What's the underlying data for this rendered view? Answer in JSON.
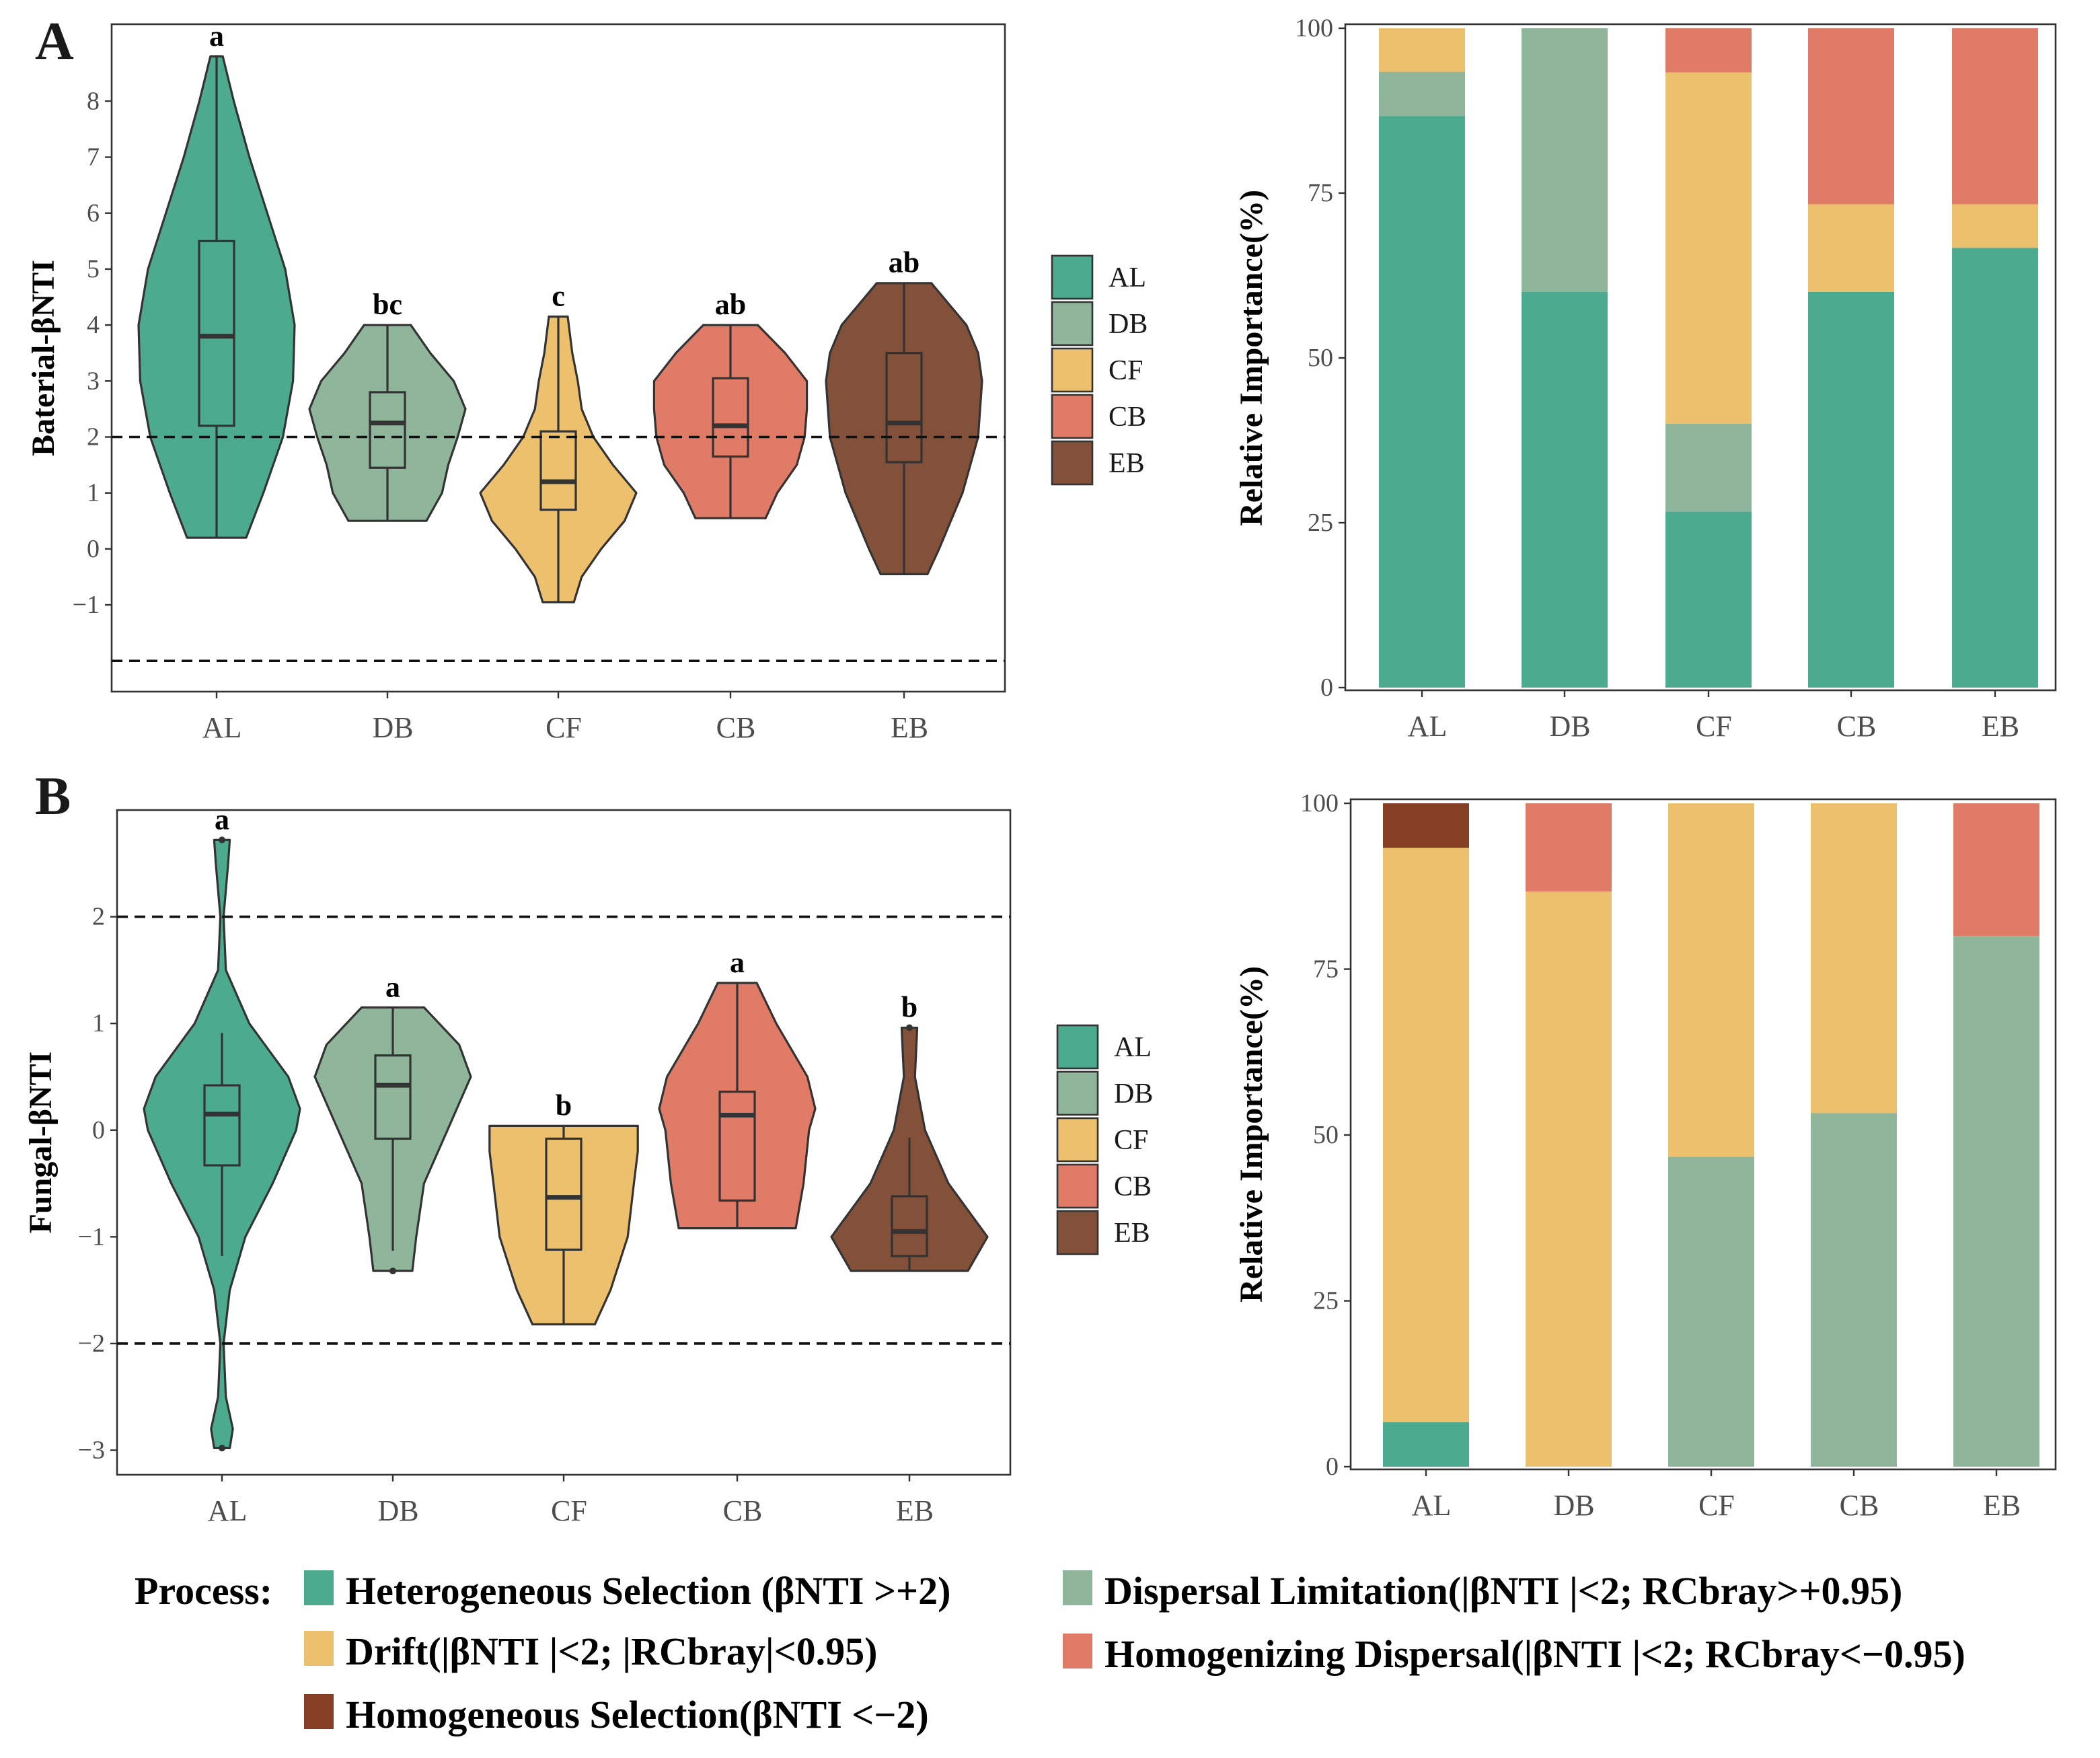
{
  "panel_labels": [
    "A",
    "B"
  ],
  "colors": {
    "groups": {
      "AL": "#4caa8f",
      "DB": "#8fb69a",
      "CF": "#ecc06c",
      "CB": "#e07b67",
      "EB": "#83513a"
    },
    "processes": [
      "#4caa8f",
      "#8fb69a",
      "#ecc06c",
      "#e07b67",
      "#843f25"
    ]
  },
  "process_legend": {
    "title": "Process:",
    "items": [
      "Heterogeneous Selection (βNTI >+2)",
      "Dispersal Limitation(|βNTI |<2; RCbray>+0.95)",
      "Drift(|βNTI |<2; |RCbray|<0.95)",
      "Homogenizing Dispersal(|βNTI |<2; RCbray<−0.95)",
      "Homogeneous Selection(βNTI <−2)"
    ]
  },
  "chart_data": [
    {
      "type": "violin",
      "id": "A-violin",
      "ylabel": "Baterial-βNTI",
      "categories": [
        "AL",
        "DB",
        "CF",
        "CB",
        "EB"
      ],
      "yticks": [
        -1,
        0,
        1,
        2,
        3,
        4,
        5,
        6,
        7,
        8
      ],
      "ylim": [
        -2.55,
        9.375
      ],
      "reference_lines": [
        2,
        -2
      ],
      "legend": [
        "AL",
        "DB",
        "CF",
        "CB",
        "EB"
      ],
      "significance": [
        "a",
        "bc",
        "c",
        "ab",
        "ab"
      ],
      "box": [
        {
          "min": 0.2,
          "q1": 2.2,
          "median": 3.8,
          "q3": 5.5,
          "max": 8.8,
          "outliers": []
        },
        {
          "min": 0.5,
          "q1": 1.45,
          "median": 2.25,
          "q3": 2.8,
          "max": 4.0,
          "outliers": []
        },
        {
          "min": -0.95,
          "q1": 0.7,
          "median": 1.2,
          "q3": 2.1,
          "max": 4.15,
          "outliers": []
        },
        {
          "min": 0.55,
          "q1": 1.65,
          "median": 2.2,
          "q3": 3.05,
          "max": 4.0,
          "outliers": []
        },
        {
          "min": -0.45,
          "q1": 1.55,
          "median": 2.25,
          "q3": 3.5,
          "max": 4.75,
          "outliers": []
        }
      ],
      "density": [
        [
          [
            0.2,
            0.38
          ],
          [
            1,
            0.6
          ],
          [
            2,
            0.85
          ],
          [
            3,
            0.98
          ],
          [
            4,
            1
          ],
          [
            5,
            0.88
          ],
          [
            6,
            0.65
          ],
          [
            7,
            0.42
          ],
          [
            8,
            0.22
          ],
          [
            8.8,
            0.08
          ]
        ],
        [
          [
            0.5,
            0.5
          ],
          [
            1,
            0.7
          ],
          [
            1.5,
            0.78
          ],
          [
            2,
            0.9
          ],
          [
            2.5,
            1
          ],
          [
            3,
            0.85
          ],
          [
            3.5,
            0.55
          ],
          [
            4,
            0.3
          ]
        ],
        [
          [
            -0.95,
            0.2
          ],
          [
            -0.5,
            0.3
          ],
          [
            0,
            0.55
          ],
          [
            0.5,
            0.85
          ],
          [
            1,
            1
          ],
          [
            1.5,
            0.7
          ],
          [
            2,
            0.45
          ],
          [
            2.5,
            0.3
          ],
          [
            3,
            0.25
          ],
          [
            3.5,
            0.18
          ],
          [
            4.15,
            0.12
          ]
        ],
        [
          [
            0.55,
            0.45
          ],
          [
            1,
            0.6
          ],
          [
            1.5,
            0.85
          ],
          [
            2,
            0.95
          ],
          [
            2.5,
            0.98
          ],
          [
            3,
            0.98
          ],
          [
            3.5,
            0.7
          ],
          [
            4,
            0.35
          ]
        ],
        [
          [
            -0.45,
            0.3
          ],
          [
            0,
            0.45
          ],
          [
            1,
            0.75
          ],
          [
            2,
            0.95
          ],
          [
            3,
            1
          ],
          [
            3.5,
            0.95
          ],
          [
            4,
            0.8
          ],
          [
            4.75,
            0.35
          ]
        ]
      ]
    },
    {
      "type": "bar",
      "stacked": true,
      "id": "A-bar",
      "ylabel": "Relative Importance(%)",
      "categories": [
        "AL",
        "DB",
        "CF",
        "CB",
        "EB"
      ],
      "yticks": [
        0,
        25,
        50,
        75,
        100
      ],
      "ylim": [
        0,
        100
      ],
      "series": [
        {
          "name": "Heterogeneous Selection",
          "values": [
            86.7,
            60,
            26.7,
            60,
            66.7
          ]
        },
        {
          "name": "Dispersal Limitation",
          "values": [
            6.7,
            40,
            13.3,
            0,
            0
          ]
        },
        {
          "name": "Drift",
          "values": [
            6.6,
            0,
            53.3,
            13.3,
            6.6
          ]
        },
        {
          "name": "Homogenizing Dispersal",
          "values": [
            0,
            0,
            6.7,
            26.7,
            26.7
          ]
        },
        {
          "name": "Homogeneous Selection",
          "values": [
            0,
            0,
            0,
            0,
            0
          ]
        }
      ]
    },
    {
      "type": "violin",
      "id": "B-violin",
      "ylabel": "Fungal-βNTI",
      "categories": [
        "AL",
        "DB",
        "CF",
        "CB",
        "EB"
      ],
      "yticks": [
        -3,
        -2,
        -1,
        0,
        1,
        2
      ],
      "ylim": [
        -3.23,
        3.0
      ],
      "reference_lines": [
        2,
        -2
      ],
      "legend": [
        "AL",
        "DB",
        "CF",
        "CB",
        "EB"
      ],
      "significance": [
        "a",
        "a",
        "b",
        "a",
        "b"
      ],
      "box": [
        {
          "min": -1.18,
          "q1": -0.33,
          "median": 0.15,
          "q3": 0.42,
          "max": 0.91,
          "outliers": [
            2.72,
            -2.98
          ]
        },
        {
          "min": -1.13,
          "q1": -0.08,
          "median": 0.42,
          "q3": 0.7,
          "max": 1.15,
          "outliers": [
            -1.32
          ]
        },
        {
          "min": -1.82,
          "q1": -1.12,
          "median": -0.63,
          "q3": -0.08,
          "max": 0.04,
          "outliers": []
        },
        {
          "min": -0.92,
          "q1": -0.66,
          "median": 0.14,
          "q3": 0.36,
          "max": 1.38,
          "outliers": []
        },
        {
          "min": -1.32,
          "q1": -1.18,
          "median": -0.95,
          "q3": -0.62,
          "max": -0.07,
          "outliers": [
            0.96
          ]
        }
      ],
      "density": [
        [
          [
            -2.98,
            0.1
          ],
          [
            -2.8,
            0.14
          ],
          [
            -2.5,
            0.05
          ],
          [
            -2,
            0.02
          ],
          [
            -1.5,
            0.1
          ],
          [
            -1,
            0.3
          ],
          [
            -0.5,
            0.65
          ],
          [
            0,
            0.95
          ],
          [
            0.2,
            1
          ],
          [
            0.5,
            0.85
          ],
          [
            1,
            0.35
          ],
          [
            1.5,
            0.05
          ],
          [
            2,
            0.02
          ],
          [
            2.5,
            0.08
          ],
          [
            2.72,
            0.1
          ]
        ],
        [
          [
            -1.32,
            0.25
          ],
          [
            -1,
            0.3
          ],
          [
            -0.5,
            0.4
          ],
          [
            0,
            0.7
          ],
          [
            0.5,
            1
          ],
          [
            0.8,
            0.85
          ],
          [
            1.15,
            0.4
          ]
        ],
        [
          [
            -1.82,
            0.4
          ],
          [
            -1.5,
            0.6
          ],
          [
            -1,
            0.82
          ],
          [
            -0.5,
            0.9
          ],
          [
            -0.2,
            0.95
          ],
          [
            0.04,
            0.95
          ]
        ],
        [
          [
            -0.92,
            0.75
          ],
          [
            -0.5,
            0.85
          ],
          [
            0,
            0.92
          ],
          [
            0.2,
            1
          ],
          [
            0.5,
            0.9
          ],
          [
            1,
            0.5
          ],
          [
            1.38,
            0.25
          ]
        ],
        [
          [
            -1.32,
            0.75
          ],
          [
            -1,
            1
          ],
          [
            -0.5,
            0.5
          ],
          [
            0,
            0.2
          ],
          [
            0.5,
            0.07
          ],
          [
            0.96,
            0.1
          ]
        ]
      ]
    },
    {
      "type": "bar",
      "stacked": true,
      "id": "B-bar",
      "ylabel": "Relative Importance(%)",
      "categories": [
        "AL",
        "DB",
        "CF",
        "CB",
        "EB"
      ],
      "yticks": [
        0,
        25,
        50,
        75,
        100
      ],
      "ylim": [
        0,
        100
      ],
      "series": [
        {
          "name": "Heterogeneous Selection",
          "values": [
            6.7,
            0,
            0,
            0,
            0
          ]
        },
        {
          "name": "Dispersal Limitation",
          "values": [
            0,
            0,
            46.7,
            53.3,
            80
          ]
        },
        {
          "name": "Drift",
          "values": [
            86.6,
            86.7,
            53.3,
            46.7,
            0
          ]
        },
        {
          "name": "Homogenizing Dispersal",
          "values": [
            0,
            13.3,
            0,
            0,
            20
          ]
        },
        {
          "name": "Homogeneous Selection",
          "values": [
            6.7,
            0,
            0,
            0,
            0
          ]
        }
      ]
    }
  ]
}
